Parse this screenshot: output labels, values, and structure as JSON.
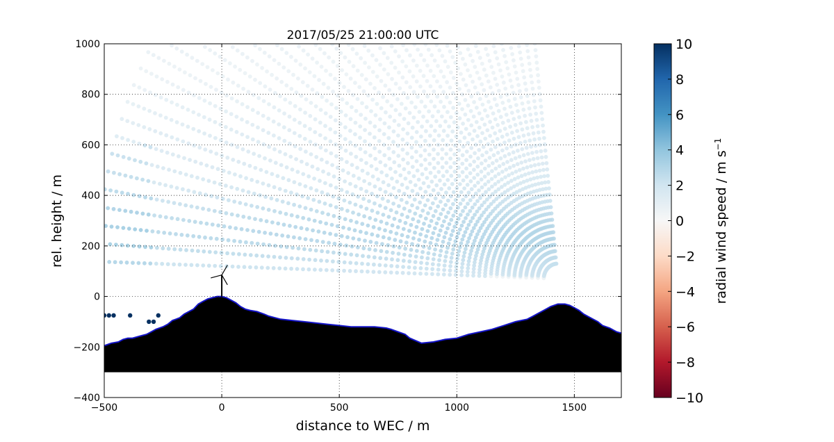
{
  "chart_data": {
    "type": "scatter",
    "title": "2017/05/25 21:00:00 UTC",
    "xlabel": "distance to WEC / m",
    "ylabel": "rel. height / m",
    "xlim": [
      -500,
      1700
    ],
    "ylim": [
      -400,
      1000
    ],
    "x_ticks": [
      -500,
      0,
      500,
      1000,
      1500
    ],
    "x_tick_labels": [
      "−500",
      "0",
      "500",
      "1000",
      "1500"
    ],
    "y_ticks": [
      -400,
      -200,
      0,
      200,
      400,
      600,
      800,
      1000
    ],
    "y_tick_labels": [
      "−400",
      "−200",
      "0",
      "200",
      "400",
      "600",
      "800",
      "1000"
    ],
    "grid": "dotted",
    "lidar": {
      "origin": [
        1430,
        70
      ],
      "azimuth_min_deg": 2,
      "azimuth_max_deg": 84,
      "n_beams": 40,
      "range_gate_m": 25,
      "max_range_m": 1960,
      "min_range_m": 60
    },
    "speed_field_description": "radial wind speed mostly +0.5 to +3.5 m/s, strongest near 200-300 m height, weak negative values near terrain",
    "notable_points": [
      {
        "x": -500,
        "y": -75,
        "value": 10
      },
      {
        "x": -480,
        "y": -75,
        "value": 10
      },
      {
        "x": -460,
        "y": -75,
        "value": 10
      },
      {
        "x": -390,
        "y": -75,
        "value": 10
      },
      {
        "x": -310,
        "y": -100,
        "value": 10
      },
      {
        "x": -290,
        "y": -100,
        "value": 10
      },
      {
        "x": -270,
        "y": -75,
        "value": 10
      }
    ],
    "terrain": {
      "x": [
        -500,
        -470,
        -440,
        -420,
        -400,
        -380,
        -340,
        -320,
        -300,
        -280,
        -250,
        -230,
        -210,
        -180,
        -160,
        -140,
        -120,
        -100,
        -80,
        -60,
        -40,
        -20,
        0,
        20,
        40,
        60,
        80,
        100,
        120,
        150,
        180,
        200,
        250,
        300,
        350,
        400,
        450,
        500,
        550,
        600,
        650,
        700,
        720,
        750,
        780,
        800,
        850,
        900,
        950,
        1000,
        1050,
        1100,
        1150,
        1200,
        1250,
        1300,
        1320,
        1350,
        1380,
        1400,
        1430,
        1460,
        1480,
        1500,
        1520,
        1540,
        1560,
        1600,
        1620,
        1650,
        1680,
        1700
      ],
      "y": [
        -195,
        -185,
        -180,
        -170,
        -165,
        -165,
        -155,
        -150,
        -140,
        -130,
        -120,
        -110,
        -95,
        -85,
        -70,
        -60,
        -50,
        -30,
        -20,
        -10,
        -5,
        0,
        0,
        -5,
        -15,
        -25,
        -40,
        -50,
        -55,
        -60,
        -70,
        -78,
        -90,
        -95,
        -100,
        -105,
        -110,
        -115,
        -120,
        -120,
        -120,
        -125,
        -130,
        -140,
        -150,
        -165,
        -185,
        -180,
        -170,
        -165,
        -150,
        -140,
        -130,
        -115,
        -100,
        -90,
        -80,
        -65,
        -50,
        -40,
        -30,
        -30,
        -35,
        -45,
        -55,
        -70,
        -80,
        -100,
        -115,
        -125,
        -140,
        -145
      ]
    },
    "terrain_floor_y": -300,
    "wec": {
      "x": 0,
      "hub_height": 85,
      "blade_length": 45
    },
    "colorbar": {
      "label": "radial wind speed / m s",
      "label_superscript": "−1",
      "vmin": -10,
      "vmax": 10,
      "cmap": "RdBu",
      "ticks": [
        10,
        8,
        6,
        4,
        2,
        0,
        -2,
        -4,
        -6,
        -8,
        -10
      ],
      "tick_labels": [
        "10",
        "8",
        "6",
        "4",
        "2",
        "0",
        "−2",
        "−4",
        "−6",
        "−8",
        "−10"
      ]
    }
  },
  "colors": {
    "terrain_fill": "#000000",
    "terrain_outline": "#1515c8",
    "grid": "#000000",
    "frame": "#000000"
  }
}
